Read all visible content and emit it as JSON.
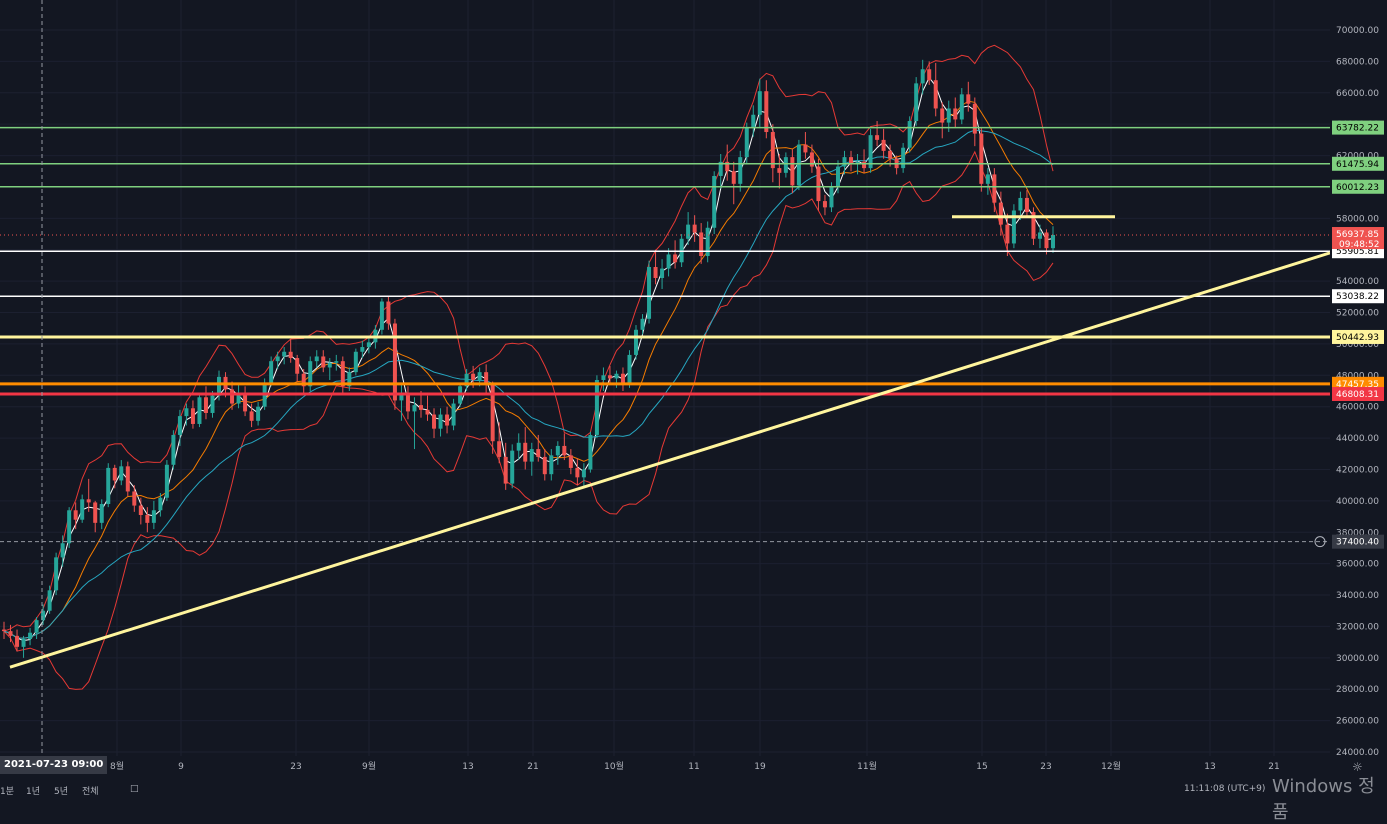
{
  "chart_data": {
    "type": "candlestick",
    "instrument_price_axis": {
      "ylim": [
        24000,
        72000
      ],
      "ticks": [
        "24000.00",
        "26000.00",
        "28000.00",
        "30000.00",
        "32000.00",
        "34000.00",
        "36000.00",
        "38000.00",
        "40000.00",
        "42000.00",
        "44000.00",
        "46000.00",
        "48000.00",
        "50000.00",
        "52000.00",
        "54000.00",
        "56000.00",
        "58000.00",
        "60000.00",
        "62000.00",
        "64000.00",
        "66000.00",
        "68000.00",
        "70000.00"
      ]
    },
    "x_ticks": [
      "8월",
      "9",
      "23",
      "9월",
      "13",
      "21",
      "10월",
      "11",
      "19",
      "11월",
      "15",
      "23",
      "12월",
      "13",
      "21"
    ],
    "current_price": "56937.85",
    "countdown": "09:48:52",
    "crosshair_price": "37400.40",
    "crosshair_date": "2021-07-23  09:00",
    "horizontal_levels": [
      {
        "price": 63782.22,
        "label": "63782.22",
        "color": "#7fd07f"
      },
      {
        "price": 61475.94,
        "label": "61475.94",
        "color": "#7fd07f"
      },
      {
        "price": 60012.23,
        "label": "60012.23",
        "color": "#7fd07f"
      },
      {
        "price": 55905.81,
        "label": "55905.81",
        "color": "#ffffff"
      },
      {
        "price": 53038.22,
        "label": "53038.22",
        "color": "#ffffff"
      },
      {
        "price": 50442.93,
        "label": "50442.93",
        "color": "#fff59d"
      },
      {
        "price": 47457.35,
        "label": "47457.35",
        "color": "#ff8c00"
      },
      {
        "price": 46808.31,
        "label": "46808.31",
        "color": "#f23645"
      }
    ],
    "candles": [
      [
        31800,
        32300,
        31200,
        31700
      ],
      [
        31700,
        32100,
        31000,
        31400
      ],
      [
        31400,
        31800,
        30400,
        30700
      ],
      [
        30700,
        31400,
        30000,
        31200
      ],
      [
        31200,
        31900,
        30800,
        31600
      ],
      [
        31600,
        32600,
        31200,
        32400
      ],
      [
        32400,
        33400,
        32100,
        33000
      ],
      [
        33000,
        34600,
        32800,
        34300
      ],
      [
        34300,
        36700,
        34000,
        36400
      ],
      [
        36400,
        37800,
        35800,
        37300
      ],
      [
        37300,
        39600,
        37000,
        39400
      ],
      [
        39400,
        39900,
        38200,
        38800
      ],
      [
        38800,
        40400,
        38600,
        40100
      ],
      [
        40100,
        41400,
        39300,
        39900
      ],
      [
        39900,
        40000,
        38000,
        38600
      ],
      [
        38600,
        40100,
        38200,
        39800
      ],
      [
        39800,
        42400,
        39600,
        42100
      ],
      [
        42100,
        42300,
        40800,
        41300
      ],
      [
        41300,
        42600,
        41000,
        42200
      ],
      [
        42200,
        42500,
        40300,
        40600
      ],
      [
        40600,
        41000,
        39300,
        39700
      ],
      [
        39700,
        40200,
        38500,
        39100
      ],
      [
        39100,
        39600,
        38000,
        38600
      ],
      [
        38600,
        40000,
        38200,
        39400
      ],
      [
        39400,
        40500,
        39000,
        40200
      ],
      [
        40200,
        42600,
        40000,
        42300
      ],
      [
        42300,
        44500,
        42000,
        44200
      ],
      [
        44200,
        45800,
        43500,
        45400
      ],
      [
        45400,
        46200,
        44800,
        45900
      ],
      [
        45900,
        46400,
        44600,
        44900
      ],
      [
        44900,
        46900,
        44700,
        46600
      ],
      [
        46600,
        47300,
        45200,
        45600
      ],
      [
        45600,
        47000,
        45300,
        46700
      ],
      [
        46700,
        48300,
        46400,
        47900
      ],
      [
        47900,
        48200,
        46600,
        47100
      ],
      [
        47100,
        47600,
        45800,
        46200
      ],
      [
        46200,
        47400,
        45900,
        46900
      ],
      [
        46900,
        47300,
        45400,
        45700
      ],
      [
        45700,
        46200,
        44700,
        45100
      ],
      [
        45100,
        46300,
        44800,
        46000
      ],
      [
        46000,
        47800,
        45800,
        47500
      ],
      [
        47500,
        49200,
        47300,
        48900
      ],
      [
        48900,
        49500,
        48400,
        49200
      ],
      [
        49200,
        49800,
        48700,
        49500
      ],
      [
        49500,
        50300,
        48800,
        49100
      ],
      [
        49100,
        49300,
        47600,
        48100
      ],
      [
        48100,
        48400,
        46800,
        47300
      ],
      [
        47300,
        49200,
        47000,
        48900
      ],
      [
        48900,
        49600,
        48500,
        49200
      ],
      [
        49200,
        49600,
        48200,
        48500
      ],
      [
        48500,
        49100,
        47700,
        48800
      ],
      [
        48800,
        49300,
        48300,
        48900
      ],
      [
        48900,
        49200,
        46900,
        47300
      ],
      [
        47300,
        48500,
        47000,
        48200
      ],
      [
        48200,
        49700,
        48000,
        49500
      ],
      [
        49500,
        50200,
        49100,
        49800
      ],
      [
        49800,
        50500,
        49400,
        50100
      ],
      [
        50100,
        51200,
        49700,
        50900
      ],
      [
        50900,
        52900,
        50600,
        52700
      ],
      [
        52700,
        53000,
        50900,
        51300
      ],
      [
        51300,
        51600,
        45800,
        46400
      ],
      [
        46400,
        47500,
        45100,
        46900
      ],
      [
        46900,
        47300,
        45200,
        45700
      ],
      [
        45700,
        46600,
        43300,
        46100
      ],
      [
        46100,
        47000,
        45300,
        45800
      ],
      [
        45800,
        46700,
        45100,
        45500
      ],
      [
        45500,
        45900,
        44000,
        44600
      ],
      [
        44600,
        45900,
        44100,
        45500
      ],
      [
        45500,
        46000,
        44300,
        44800
      ],
      [
        44800,
        46500,
        44500,
        46200
      ],
      [
        46200,
        47500,
        46000,
        47300
      ],
      [
        47300,
        48400,
        47000,
        48100
      ],
      [
        48100,
        48600,
        47200,
        47700
      ],
      [
        47700,
        48500,
        47300,
        48200
      ],
      [
        48200,
        48700,
        46800,
        47400
      ],
      [
        47400,
        47600,
        43000,
        43800
      ],
      [
        43800,
        45000,
        42400,
        42800
      ],
      [
        42800,
        43700,
        40700,
        41100
      ],
      [
        41100,
        43600,
        40800,
        43200
      ],
      [
        43200,
        44300,
        42600,
        43700
      ],
      [
        43700,
        44700,
        42000,
        42500
      ],
      [
        42500,
        43700,
        41600,
        43300
      ],
      [
        43300,
        44200,
        42500,
        42800
      ],
      [
        42800,
        43300,
        41300,
        41700
      ],
      [
        41700,
        43300,
        41300,
        42900
      ],
      [
        42900,
        43800,
        42300,
        43500
      ],
      [
        43500,
        44300,
        42600,
        42900
      ],
      [
        42900,
        43300,
        41700,
        42100
      ],
      [
        42100,
        42700,
        41000,
        41500
      ],
      [
        41500,
        42400,
        40800,
        42000
      ],
      [
        42000,
        44400,
        41800,
        44200
      ],
      [
        44200,
        48000,
        44000,
        47700
      ],
      [
        47700,
        48500,
        47000,
        48000
      ],
      [
        48000,
        48600,
        47400,
        47800
      ],
      [
        47800,
        48300,
        47200,
        48100
      ],
      [
        48100,
        48500,
        47000,
        47400
      ],
      [
        47400,
        49600,
        47200,
        49300
      ],
      [
        49300,
        51200,
        49000,
        50900
      ],
      [
        50900,
        51900,
        50600,
        51600
      ],
      [
        51600,
        55300,
        51300,
        54900
      ],
      [
        54900,
        56000,
        53800,
        54200
      ],
      [
        54200,
        55400,
        53500,
        54800
      ],
      [
        54800,
        56100,
        54300,
        55700
      ],
      [
        55700,
        56600,
        54800,
        55200
      ],
      [
        55200,
        57000,
        54900,
        56700
      ],
      [
        56700,
        58400,
        56300,
        57600
      ],
      [
        57600,
        58200,
        56500,
        57100
      ],
      [
        57100,
        57700,
        55100,
        55600
      ],
      [
        55600,
        57800,
        55200,
        57400
      ],
      [
        57400,
        61000,
        57000,
        60700
      ],
      [
        60700,
        62100,
        59900,
        61600
      ],
      [
        61600,
        62700,
        60400,
        61000
      ],
      [
        61000,
        61600,
        58900,
        60200
      ],
      [
        60200,
        62300,
        59700,
        61900
      ],
      [
        61900,
        64100,
        61500,
        63800
      ],
      [
        63800,
        65200,
        63200,
        64600
      ],
      [
        64600,
        66900,
        63800,
        66100
      ],
      [
        66100,
        66800,
        63100,
        63500
      ],
      [
        63500,
        64000,
        60300,
        61200
      ],
      [
        61200,
        62100,
        59900,
        60900
      ],
      [
        60900,
        62200,
        60600,
        61900
      ],
      [
        61900,
        62400,
        59600,
        60100
      ],
      [
        60100,
        63000,
        59800,
        62700
      ],
      [
        62700,
        63500,
        61800,
        62200
      ],
      [
        62200,
        62700,
        60900,
        61300
      ],
      [
        61300,
        61800,
        58500,
        59100
      ],
      [
        59100,
        59500,
        58200,
        58700
      ],
      [
        58700,
        60300,
        58400,
        60000
      ],
      [
        60000,
        61700,
        59600,
        61300
      ],
      [
        61300,
        62300,
        60800,
        61900
      ],
      [
        61900,
        62300,
        61000,
        61500
      ],
      [
        61500,
        62100,
        60800,
        61600
      ],
      [
        61600,
        62400,
        60900,
        61200
      ],
      [
        61200,
        63700,
        60900,
        63300
      ],
      [
        63300,
        64200,
        62600,
        63000
      ],
      [
        63000,
        63700,
        61800,
        62300
      ],
      [
        62300,
        62700,
        61300,
        61800
      ],
      [
        61800,
        62000,
        60800,
        61200
      ],
      [
        61200,
        62800,
        60900,
        62500
      ],
      [
        62500,
        64500,
        62200,
        64200
      ],
      [
        64200,
        67000,
        63900,
        66600
      ],
      [
        66600,
        68100,
        65900,
        67500
      ],
      [
        67500,
        68000,
        66500,
        66800
      ],
      [
        66800,
        67900,
        64500,
        65000
      ],
      [
        65000,
        65400,
        63100,
        64100
      ],
      [
        64100,
        65500,
        63500,
        65000
      ],
      [
        65000,
        65700,
        63800,
        64300
      ],
      [
        64300,
        66300,
        64000,
        65900
      ],
      [
        65900,
        66700,
        64800,
        65300
      ],
      [
        65300,
        65700,
        62600,
        63400
      ],
      [
        63400,
        63800,
        59700,
        60200
      ],
      [
        60200,
        61200,
        59500,
        60800
      ],
      [
        60800,
        61200,
        58400,
        59000
      ],
      [
        59000,
        59700,
        56900,
        57600
      ],
      [
        57600,
        58300,
        55600,
        56400
      ],
      [
        56400,
        58900,
        56100,
        58500
      ],
      [
        58500,
        59700,
        57900,
        59300
      ],
      [
        59300,
        59800,
        58100,
        58400
      ],
      [
        58400,
        58700,
        56300,
        56700
      ],
      [
        56700,
        57600,
        56100,
        57100
      ],
      [
        57100,
        57300,
        55700,
        56100
      ],
      [
        56100,
        57500,
        55800,
        56940
      ]
    ],
    "trendlines": [
      {
        "name": "rising_support",
        "from": {
          "date": "2021-07-20",
          "price": 29400
        },
        "to": {
          "date": "2021-12-12",
          "price": 55800
        },
        "color": "#fff59d"
      },
      {
        "name": "short_resistance",
        "from": {
          "date": "2021-11-12",
          "price": 58100
        },
        "to": {
          "date": "2021-12-02",
          "price": 58100
        },
        "color": "#fff59d"
      }
    ],
    "indicators": [
      "moving average (white)",
      "moving average (orange)",
      "moving average (teal)",
      "bollinger bands (red)"
    ],
    "bottom_bar": {
      "left_items": [
        "1분",
        "1년",
        "5년",
        "전체"
      ],
      "clock": "11:11:08 (UTC+9)",
      "watermark": "Windows 정품"
    },
    "colors": {
      "up": "#26a69a",
      "down": "#ef5350",
      "background": "#131722",
      "ma_fast": "#ffffff",
      "ma_mid": "#f57c00",
      "ma_slow": "#26a6c0",
      "bands": "#e53935"
    }
  }
}
